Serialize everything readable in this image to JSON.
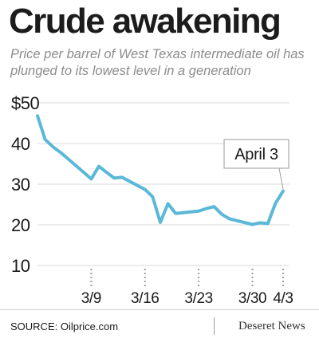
{
  "headline": "Crude awakening",
  "subtitle": "Price per barrel of West Texas intermediate oil has plunged to its lowest level in a generation",
  "source": "SOURCE: Oilprice.com",
  "brand": "Deseret News",
  "colors": {
    "line": "#5ab8d8",
    "gridline": "#d9d9d9",
    "dotted_tick": "#9e9e9e",
    "text": "#1a1a1a"
  },
  "chart_data": {
    "type": "line",
    "title": "",
    "xlabel": "",
    "ylabel": "",
    "ylim": [
      10,
      50
    ],
    "xlim": [
      "2020-03-02",
      "2020-04-03"
    ],
    "grid": true,
    "y_ticks": [
      {
        "value": 50,
        "label": "$50"
      },
      {
        "value": 40,
        "label": "40"
      },
      {
        "value": 30,
        "label": "30"
      },
      {
        "value": 20,
        "label": "20"
      },
      {
        "value": 10,
        "label": "10"
      }
    ],
    "x_ticks": [
      {
        "value": "2020-03-09",
        "label": "3/9"
      },
      {
        "value": "2020-03-16",
        "label": "3/16"
      },
      {
        "value": "2020-03-23",
        "label": "3/23"
      },
      {
        "value": "2020-03-30",
        "label": "3/30"
      },
      {
        "value": "2020-04-03",
        "label": "4/3"
      }
    ],
    "series": [
      {
        "x": [
          "2020-03-02",
          "2020-03-03",
          "2020-03-04",
          "2020-03-05",
          "2020-03-06",
          "2020-03-09",
          "2020-03-10",
          "2020-03-11",
          "2020-03-12",
          "2020-03-13",
          "2020-03-16",
          "2020-03-17",
          "2020-03-18",
          "2020-03-19",
          "2020-03-20",
          "2020-03-23",
          "2020-03-24",
          "2020-03-25",
          "2020-03-26",
          "2020-03-27",
          "2020-03-30",
          "2020-03-31",
          "2020-04-01",
          "2020-04-02",
          "2020-04-03"
        ],
        "values": [
          46.8,
          41.0,
          39.2,
          37.8,
          36.2,
          31.3,
          34.4,
          32.9,
          31.5,
          31.7,
          28.7,
          26.9,
          20.6,
          25.2,
          22.8,
          23.4,
          24.0,
          24.5,
          22.6,
          21.5,
          20.1,
          20.5,
          20.3,
          25.3,
          28.3
        ]
      }
    ],
    "annotations": [
      {
        "text": "April 3",
        "x": "2020-04-03",
        "y": 28.3
      }
    ]
  }
}
